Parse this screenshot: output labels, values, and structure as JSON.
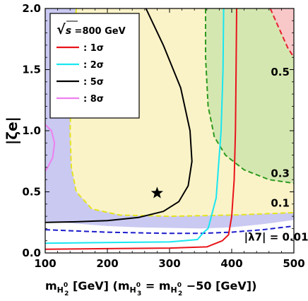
{
  "chart_data": {
    "type": "line",
    "xlabel": {
      "m": "m",
      "sub": "H",
      "subsup": "0",
      "subsub": "2",
      "rest1": " [GeV] (",
      "m2": "m",
      "sub2": "H",
      "subsup2": "0",
      "subsub2": "3",
      "eq": " = ",
      "m3": "m",
      "sub3": "H",
      "subsup3": "0",
      "subsub3": "2",
      "rest2": " −50 [GeV])"
    },
    "ylabel": "|ζe|",
    "xlim": [
      100,
      500
    ],
    "ylim": [
      0.0,
      2.0
    ],
    "xticks": [
      "100",
      "200",
      "300",
      "400",
      "500"
    ],
    "yticks": [
      "0.0",
      "0.5",
      "1.0",
      "1.5",
      "2.0"
    ],
    "legend": {
      "title": "√s =800 GeV",
      "title_sqrt": "√",
      "title_s": "s",
      "title_rest": " =800 GeV",
      "placement": "top-left",
      "entries": [
        {
          "label": ": 1σ",
          "color": "#e8141a"
        },
        {
          "label": ": 2σ",
          "color": "#19e6f0"
        },
        {
          "label": ": 5σ",
          "color": "#000000"
        },
        {
          "label": ": 8σ",
          "color": "#ee7fee"
        }
      ]
    },
    "region_labels": [
      {
        "text": "0.5",
        "x": 478,
        "y": 1.45
      },
      {
        "text": "0.3",
        "x": 478,
        "y": 0.62
      },
      {
        "text": "0.1",
        "x": 478,
        "y": 0.38
      },
      {
        "text": "|λ7| = 0.01",
        "x": 420,
        "y": 0.1
      }
    ],
    "benchmark_point": {
      "x": 280,
      "y": 0.49,
      "marker": "star"
    },
    "regions": [
      {
        "name": "lambda7 < 0.01",
        "color": "#c9c9f2",
        "boundary": [
          [
            100,
            0.26
          ],
          [
            150,
            0.24
          ],
          [
            200,
            0.22
          ],
          [
            250,
            0.21
          ],
          [
            300,
            0.205
          ],
          [
            350,
            0.2
          ],
          [
            400,
            0.21
          ],
          [
            450,
            0.235
          ],
          [
            500,
            0.27
          ]
        ]
      },
      {
        "name": "lambda7 0.01-0.1",
        "color": "#fbf3c8",
        "boundary": [
          [
            150,
            2.0
          ],
          [
            143,
            1.5
          ],
          [
            140,
            1.0
          ],
          [
            142,
            0.7
          ],
          [
            150,
            0.5
          ],
          [
            175,
            0.36
          ],
          [
            220,
            0.31
          ],
          [
            300,
            0.3
          ],
          [
            400,
            0.31
          ],
          [
            500,
            0.33
          ]
        ]
      },
      {
        "name": "lambda7 0.1-0.3",
        "color": "#d5e7b1",
        "boundary": [
          [
            358,
            2.0
          ],
          [
            358,
            1.6
          ],
          [
            362,
            1.2
          ],
          [
            372,
            0.95
          ],
          [
            390,
            0.8
          ],
          [
            420,
            0.68
          ],
          [
            460,
            0.6
          ],
          [
            500,
            0.57
          ]
        ]
      },
      {
        "name": "lambda7 > 0.5",
        "color": "#f8c8c8",
        "boundary": [
          [
            462,
            2.0
          ],
          [
            475,
            1.85
          ],
          [
            490,
            1.68
          ],
          [
            500,
            1.6
          ]
        ]
      }
    ],
    "series": [
      {
        "color": "#e8141a",
        "width": 2,
        "points": [
          [
            100,
            0.03
          ],
          [
            200,
            0.035
          ],
          [
            300,
            0.04
          ],
          [
            360,
            0.05
          ],
          [
            385,
            0.1
          ],
          [
            395,
            0.15
          ],
          [
            400,
            0.3
          ],
          [
            404,
            0.6
          ],
          [
            406,
            1.0
          ],
          [
            407,
            1.5
          ],
          [
            408,
            2.0
          ]
        ]
      },
      {
        "color": "#19e6f0",
        "width": 2,
        "points": [
          [
            100,
            0.08
          ],
          [
            200,
            0.085
          ],
          [
            300,
            0.09
          ],
          [
            345,
            0.11
          ],
          [
            355,
            0.17
          ],
          [
            362,
            0.2
          ],
          [
            375,
            0.45
          ],
          [
            383,
            1.0
          ],
          [
            386,
            1.5
          ],
          [
            387,
            2.0
          ]
        ]
      },
      {
        "color": "#000000",
        "width": 2,
        "points": [
          [
            100,
            0.25
          ],
          [
            150,
            0.255
          ],
          [
            200,
            0.265
          ],
          [
            250,
            0.29
          ],
          [
            290,
            0.34
          ],
          [
            315,
            0.42
          ],
          [
            330,
            0.55
          ],
          [
            336,
            0.75
          ],
          [
            333,
            1.0
          ],
          [
            318,
            1.35
          ],
          [
            290,
            1.7
          ],
          [
            262,
            2.0
          ]
        ]
      },
      {
        "color": "#ee7fee",
        "width": 2,
        "points": [
          [
            100,
            1.05
          ],
          [
            110,
            1.0
          ],
          [
            115,
            0.9
          ],
          [
            112,
            0.78
          ],
          [
            104,
            0.7
          ],
          [
            100,
            0.67
          ]
        ]
      }
    ],
    "contour_dashes": [
      {
        "color": "#e4e420",
        "points": [
          [
            150,
            2.0
          ],
          [
            143,
            1.5
          ],
          [
            140,
            1.0
          ],
          [
            142,
            0.7
          ],
          [
            150,
            0.5
          ],
          [
            175,
            0.36
          ],
          [
            220,
            0.31
          ],
          [
            300,
            0.3
          ],
          [
            400,
            0.31
          ],
          [
            500,
            0.33
          ]
        ]
      },
      {
        "color": "#2d9a1e",
        "points": [
          [
            358,
            2.0
          ],
          [
            358,
            1.6
          ],
          [
            362,
            1.2
          ],
          [
            372,
            0.95
          ],
          [
            390,
            0.8
          ],
          [
            420,
            0.68
          ],
          [
            460,
            0.6
          ],
          [
            500,
            0.57
          ]
        ]
      },
      {
        "color": "#1c1ccc",
        "points": [
          [
            100,
            0.19
          ],
          [
            150,
            0.18
          ],
          [
            200,
            0.17
          ],
          [
            250,
            0.165
          ],
          [
            300,
            0.16
          ],
          [
            350,
            0.16
          ],
          [
            400,
            0.17
          ],
          [
            450,
            0.19
          ],
          [
            500,
            0.22
          ]
        ]
      },
      {
        "color": "#e4202a",
        "points": [
          [
            462,
            2.0
          ],
          [
            475,
            1.85
          ],
          [
            490,
            1.68
          ],
          [
            500,
            1.6
          ]
        ]
      }
    ]
  }
}
